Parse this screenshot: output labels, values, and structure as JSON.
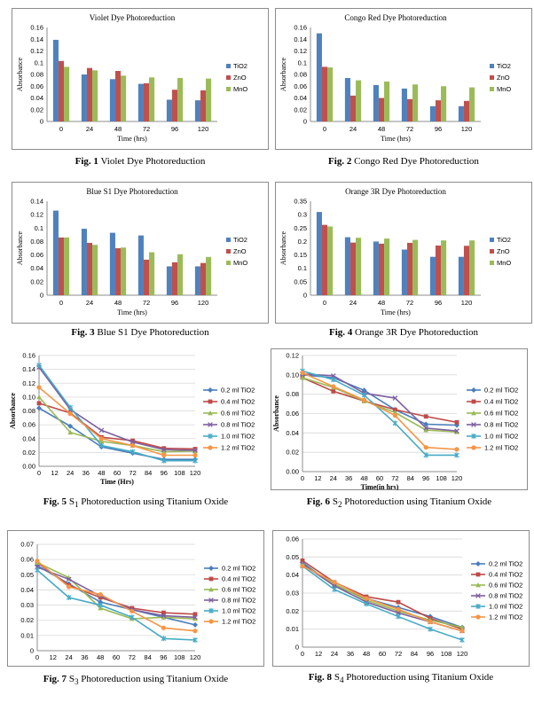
{
  "colors": {
    "TiO2_bar": "#4f81bd",
    "ZnO_bar": "#c0504d",
    "MnO_bar": "#9bbb59",
    "c02": "#4a7ebb",
    "c04": "#be4b48",
    "c06": "#98b954",
    "c08": "#7d60a0",
    "c10": "#46aac5",
    "c12": "#f69545"
  },
  "figures": [
    {
      "label": "Fig. 1",
      "caption": "Violet Dye Photoreduction"
    },
    {
      "label": "Fig. 2",
      "caption": "Congo Red Dye Photoreduction"
    },
    {
      "label": "Fig. 3",
      "caption": "Blue S1 Dye Photoreduction"
    },
    {
      "label": "Fig. 4",
      "caption": "Orange 3R Dye Photoreduction"
    },
    {
      "label": "Fig. 5",
      "pre": "S",
      "sub": "1",
      "caption": " Photoreduction using Titanium Oxide"
    },
    {
      "label": "Fig. 6",
      "pre": "S",
      "sub": "2",
      "caption": "  Photoreduction using Titanium Oxide"
    },
    {
      "label": "Fig. 7",
      "pre": "S",
      "sub": "3",
      "caption": "  Photoreduction using Titanium Oxide"
    },
    {
      "label": "Fig. 8",
      "pre": "S",
      "sub": "4",
      "caption": "  Photoreduction using Titanium Oxide"
    }
  ],
  "chart_data": [
    {
      "type": "bar",
      "title": "Violet Dye Photoreduction",
      "xlabel": "Time (hrs)",
      "ylabel": "Absorbance",
      "categories": [
        "0",
        "24",
        "48",
        "72",
        "96",
        "120"
      ],
      "ylim": [
        0,
        0.16
      ],
      "yticks": [
        "0",
        "0.02",
        "0.04",
        "0.06",
        "0.08",
        "0.1",
        "0.12",
        "0.14",
        "0.16"
      ],
      "series": [
        {
          "name": "TiO2",
          "values": [
            0.139,
            0.08,
            0.072,
            0.064,
            0.037,
            0.036
          ]
        },
        {
          "name": "ZnO",
          "values": [
            0.103,
            0.091,
            0.086,
            0.065,
            0.054,
            0.053
          ]
        },
        {
          "name": "MnO",
          "values": [
            0.093,
            0.087,
            0.078,
            0.075,
            0.074,
            0.073
          ]
        }
      ]
    },
    {
      "type": "bar",
      "title": "Congo Red Dye Photoreduction",
      "xlabel": "Time (hrs)",
      "ylabel": "Absorbance",
      "categories": [
        "0",
        "24",
        "48",
        "72",
        "96",
        "120"
      ],
      "ylim": [
        0,
        0.16
      ],
      "yticks": [
        "0",
        "0.02",
        "0.04",
        "0.06",
        "0.08",
        "0.1",
        "0.12",
        "0.14",
        "0.16"
      ],
      "series": [
        {
          "name": "TiO2",
          "values": [
            0.15,
            0.074,
            0.062,
            0.056,
            0.026,
            0.026
          ]
        },
        {
          "name": "ZnO",
          "values": [
            0.093,
            0.044,
            0.04,
            0.038,
            0.036,
            0.035
          ]
        },
        {
          "name": "MnO",
          "values": [
            0.092,
            0.07,
            0.068,
            0.063,
            0.06,
            0.058
          ]
        }
      ]
    },
    {
      "type": "bar",
      "title": "Blue S1 Dye Photoreduction",
      "xlabel": "Time (hrs)",
      "ylabel": "Absorbance",
      "categories": [
        "0",
        "24",
        "48",
        "72",
        "96",
        "120"
      ],
      "ylim": [
        0,
        0.14
      ],
      "yticks": [
        "0",
        "0.02",
        "0.04",
        "0.06",
        "0.08",
        "0.1",
        "0.12",
        "0.14"
      ],
      "series": [
        {
          "name": "TiO2",
          "values": [
            0.126,
            0.099,
            0.093,
            0.089,
            0.043,
            0.043
          ]
        },
        {
          "name": "ZnO",
          "values": [
            0.086,
            0.078,
            0.07,
            0.053,
            0.049,
            0.048
          ]
        },
        {
          "name": "MnO",
          "values": [
            0.086,
            0.075,
            0.071,
            0.064,
            0.061,
            0.057
          ]
        }
      ]
    },
    {
      "type": "bar",
      "title": "Orange 3R Dye Photoreduction",
      "xlabel": "Time (hrs)",
      "ylabel": "Absorbance",
      "categories": [
        "0",
        "24",
        "48",
        "72",
        "96",
        "120"
      ],
      "ylim": [
        0,
        0.35
      ],
      "yticks": [
        "0",
        "0.05",
        "0.1",
        "0.15",
        "0.2",
        "0.25",
        "0.3",
        "0.35"
      ],
      "series": [
        {
          "name": "TiO2",
          "values": [
            0.31,
            0.216,
            0.2,
            0.17,
            0.143,
            0.143
          ]
        },
        {
          "name": "ZnO",
          "values": [
            0.262,
            0.196,
            0.192,
            0.195,
            0.185,
            0.184
          ]
        },
        {
          "name": "MnO",
          "values": [
            0.256,
            0.214,
            0.211,
            0.206,
            0.204,
            0.204
          ]
        }
      ]
    },
    {
      "type": "line",
      "title": "",
      "xlabel": "Time (Hrs)",
      "ylabel": "Absorbance",
      "x": [
        0,
        24,
        48,
        72,
        96,
        120
      ],
      "xticks": [
        "0",
        "12",
        "24",
        "36",
        "48",
        "60",
        "72",
        "84",
        "96",
        "108",
        "120"
      ],
      "ylim": [
        0,
        0.16
      ],
      "yticks": [
        "0.00",
        "0.02",
        "0.04",
        "0.06",
        "0.08",
        "0.10",
        "0.12",
        "0.14",
        "0.16"
      ],
      "series": [
        {
          "name": "0.2 ml TiO2",
          "marker": "diamond",
          "values": [
            0.084,
            0.058,
            0.028,
            0.019,
            0.01,
            0.01
          ]
        },
        {
          "name": "0.4 ml TiO2",
          "marker": "square",
          "values": [
            0.091,
            0.077,
            0.042,
            0.037,
            0.026,
            0.025
          ]
        },
        {
          "name": "0.6 ml TiO2",
          "marker": "triangle",
          "values": [
            0.1,
            0.049,
            0.036,
            0.03,
            0.021,
            0.022
          ]
        },
        {
          "name": "0.8 ml TiO2",
          "marker": "x",
          "values": [
            0.143,
            0.082,
            0.052,
            0.035,
            0.024,
            0.023
          ]
        },
        {
          "name": "1.0 ml TiO2",
          "marker": "star",
          "values": [
            0.146,
            0.085,
            0.03,
            0.021,
            0.008,
            0.008
          ]
        },
        {
          "name": "1.2 ml TiO2",
          "marker": "circle",
          "values": [
            0.114,
            0.076,
            0.04,
            0.03,
            0.016,
            0.016
          ]
        }
      ]
    },
    {
      "type": "line",
      "title": "",
      "xlabel": "Time(in hrs)",
      "ylabel": "Absorbance",
      "x": [
        0,
        24,
        48,
        72,
        96,
        120
      ],
      "xticks": [
        "0",
        "12",
        "24",
        "36",
        "48",
        "60",
        "72",
        "84",
        "96",
        "108",
        "120"
      ],
      "ylim": [
        0,
        0.12
      ],
      "yticks": [
        "0.00",
        "0.02",
        "0.04",
        "0.06",
        "0.08",
        "0.10",
        "0.12"
      ],
      "series": [
        {
          "name": "0.2 ml TiO2",
          "marker": "diamond",
          "values": [
            0.1,
            0.097,
            0.084,
            0.064,
            0.049,
            0.048
          ]
        },
        {
          "name": "0.4 ml TiO2",
          "marker": "square",
          "values": [
            0.097,
            0.083,
            0.073,
            0.064,
            0.057,
            0.051
          ]
        },
        {
          "name": "0.6 ml TiO2",
          "marker": "triangle",
          "values": [
            0.097,
            0.087,
            0.073,
            0.061,
            0.043,
            0.041
          ]
        },
        {
          "name": "0.8 ml TiO2",
          "marker": "x",
          "values": [
            0.101,
            0.099,
            0.081,
            0.076,
            0.045,
            0.042
          ]
        },
        {
          "name": "1.0 ml TiO2",
          "marker": "star",
          "values": [
            0.104,
            0.095,
            0.079,
            0.05,
            0.017,
            0.017
          ]
        },
        {
          "name": "1.2 ml TiO2",
          "marker": "circle",
          "values": [
            0.102,
            0.088,
            0.074,
            0.058,
            0.025,
            0.023
          ]
        }
      ]
    },
    {
      "type": "line",
      "title": "",
      "xlabel": "",
      "ylabel": "",
      "x": [
        0,
        24,
        48,
        72,
        96,
        120
      ],
      "xticks": [
        "0",
        "12",
        "24",
        "36",
        "48",
        "60",
        "72",
        "84",
        "96",
        "108",
        "120"
      ],
      "ylim": [
        0,
        0.07
      ],
      "yticks": [
        "0",
        "0.01",
        "0.02",
        "0.03",
        "0.04",
        "0.05",
        "0.06",
        "0.07"
      ],
      "series": [
        {
          "name": "0.2 ml TiO2",
          "marker": "diamond",
          "values": [
            0.056,
            0.044,
            0.032,
            0.027,
            0.022,
            0.017
          ]
        },
        {
          "name": "0.4 ml TiO2",
          "marker": "square",
          "values": [
            0.058,
            0.043,
            0.035,
            0.028,
            0.025,
            0.024
          ]
        },
        {
          "name": "0.6 ml TiO2",
          "marker": "triangle",
          "values": [
            0.058,
            0.048,
            0.028,
            0.021,
            0.022,
            0.021
          ]
        },
        {
          "name": "0.8 ml TiO2",
          "marker": "x",
          "values": [
            0.055,
            0.047,
            0.036,
            0.027,
            0.023,
            0.022
          ]
        },
        {
          "name": "1.0 ml TiO2",
          "marker": "star",
          "values": [
            0.053,
            0.035,
            0.03,
            0.022,
            0.008,
            0.007
          ]
        },
        {
          "name": "1.2 ml TiO2",
          "marker": "circle",
          "values": [
            0.059,
            0.042,
            0.037,
            0.026,
            0.015,
            0.013
          ]
        }
      ]
    },
    {
      "type": "line",
      "title": "",
      "xlabel": "",
      "ylabel": "",
      "x": [
        0,
        24,
        48,
        72,
        96,
        120
      ],
      "xticks": [
        "0",
        "12",
        "24",
        "36",
        "48",
        "60",
        "72",
        "84",
        "96",
        "108",
        "120"
      ],
      "ylim": [
        0,
        0.06
      ],
      "yticks": [
        "0",
        "0.01",
        "0.02",
        "0.03",
        "0.04",
        "0.05",
        "0.06"
      ],
      "series": [
        {
          "name": "0.2 ml TiO2",
          "marker": "diamond",
          "values": [
            0.047,
            0.034,
            0.027,
            0.022,
            0.017,
            0.011
          ]
        },
        {
          "name": "0.4 ml TiO2",
          "marker": "square",
          "values": [
            0.048,
            0.036,
            0.028,
            0.025,
            0.016,
            0.01
          ]
        },
        {
          "name": "0.6 ml TiO2",
          "marker": "triangle",
          "values": [
            0.046,
            0.035,
            0.026,
            0.02,
            0.015,
            0.011
          ]
        },
        {
          "name": "0.8 ml TiO2",
          "marker": "x",
          "values": [
            0.046,
            0.034,
            0.025,
            0.019,
            0.014,
            0.009
          ]
        },
        {
          "name": "1.0 ml TiO2",
          "marker": "star",
          "values": [
            0.045,
            0.032,
            0.024,
            0.017,
            0.01,
            0.004
          ]
        },
        {
          "name": "1.2 ml TiO2",
          "marker": "circle",
          "values": [
            0.045,
            0.036,
            0.027,
            0.021,
            0.014,
            0.009
          ]
        }
      ]
    }
  ]
}
